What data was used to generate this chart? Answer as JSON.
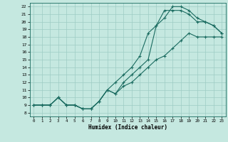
{
  "xlabel": "Humidex (Indice chaleur)",
  "bg_color": "#c5e8e0",
  "grid_color": "#9dccc4",
  "line_color": "#1a6b60",
  "xlim": [
    -0.5,
    23.5
  ],
  "ylim": [
    7.5,
    22.5
  ],
  "xticks": [
    0,
    1,
    2,
    3,
    4,
    5,
    6,
    7,
    8,
    9,
    10,
    11,
    12,
    13,
    14,
    15,
    16,
    17,
    18,
    19,
    20,
    21,
    22,
    23
  ],
  "yticks": [
    8,
    9,
    10,
    11,
    12,
    13,
    14,
    15,
    16,
    17,
    18,
    19,
    20,
    21,
    22
  ],
  "line1_x": [
    0,
    1,
    2,
    3,
    4,
    5,
    6,
    7,
    8,
    9,
    10,
    11,
    12,
    13,
    14,
    15,
    16,
    17,
    18,
    19,
    20,
    21,
    22,
    23
  ],
  "line1_y": [
    9,
    9,
    9,
    10,
    9,
    9,
    8.5,
    8.5,
    9.5,
    11,
    10.5,
    11.5,
    12,
    13,
    14,
    15,
    15.5,
    16.5,
    17.5,
    18.5,
    18,
    18,
    18,
    18
  ],
  "line2_x": [
    0,
    1,
    2,
    3,
    4,
    5,
    6,
    7,
    8,
    9,
    10,
    11,
    12,
    13,
    14,
    15,
    16,
    17,
    18,
    19,
    20,
    21,
    22,
    23
  ],
  "line2_y": [
    9,
    9,
    9,
    10,
    9,
    9,
    8.5,
    8.5,
    9.5,
    11,
    12,
    13,
    14,
    15.5,
    18.5,
    19.5,
    21.5,
    21.5,
    21.5,
    21,
    20,
    20,
    19.5,
    18.5
  ],
  "line3_x": [
    0,
    1,
    2,
    3,
    4,
    5,
    6,
    7,
    8,
    9,
    10,
    11,
    12,
    13,
    14,
    15,
    16,
    17,
    18,
    19,
    20,
    21,
    22,
    23
  ],
  "line3_y": [
    9,
    9,
    9,
    10,
    9,
    9,
    8.5,
    8.5,
    9.5,
    11,
    10.5,
    12,
    13,
    14,
    15,
    19.5,
    20.5,
    22,
    22,
    21.5,
    20.5,
    20,
    19.5,
    18.5
  ]
}
